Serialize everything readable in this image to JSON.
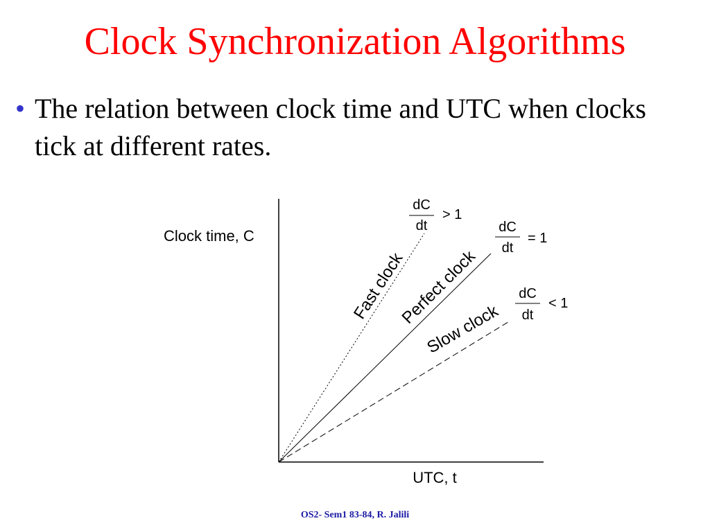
{
  "slide": {
    "title": "Clock Synchronization Algorithms",
    "bullet": "The relation between clock time and UTC when clocks tick at different rates.",
    "footer": "OS2- Sem1 83-84, R. Jalili",
    "title_color": "#ff0000",
    "bullet_color": "#3333cc"
  },
  "diagram": {
    "y_axis_label": "Clock time, C",
    "x_axis_label": "UTC, t",
    "lines": [
      {
        "label": "Fast clock",
        "style": "dotted"
      },
      {
        "label": "Perfect clock",
        "style": "solid"
      },
      {
        "label": "Slow clock",
        "style": "dashed"
      }
    ],
    "rates": [
      {
        "numerator": "dC",
        "denominator": "dt",
        "relation": "> 1"
      },
      {
        "numerator": "dC",
        "denominator": "dt",
        "relation": "= 1"
      },
      {
        "numerator": "dC",
        "denominator": "dt",
        "relation": "< 1"
      }
    ]
  }
}
